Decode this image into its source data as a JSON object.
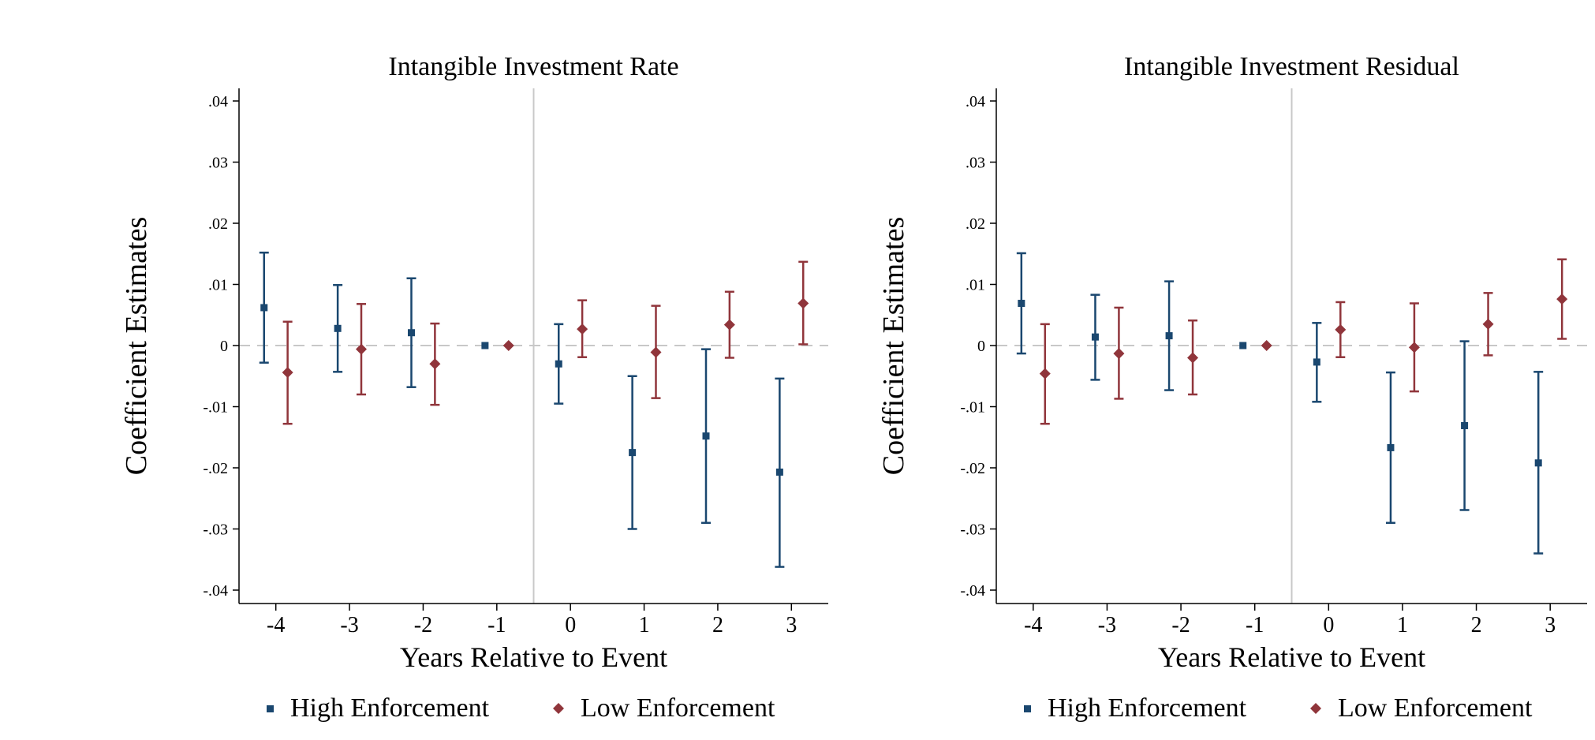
{
  "chart_data": [
    {
      "type": "scatter",
      "title": "Intangible Investment Rate",
      "xlabel": "Years Relative to Event",
      "ylabel": "Coefficient Estimates",
      "ylim": [
        -0.04,
        0.04
      ],
      "xlim": [
        -4.5,
        3.5
      ],
      "y_ticks": [
        ".04",
        ".03",
        ".02",
        ".01",
        "0",
        "-.01",
        "-.02",
        "-.03",
        "-.04"
      ],
      "x_ticks": [
        "-4",
        "-3",
        "-2",
        "-1",
        "0",
        "1",
        "2",
        "3"
      ],
      "event_line_x": -0.5,
      "zero_reference_line": true,
      "grid": false,
      "legend_position": "bottom",
      "series": [
        {
          "name": "High Enforcement",
          "color": "#1a476f",
          "marker": "square",
          "points": [
            {
              "x": -4,
              "y": 0.0062,
              "lo": -0.0028,
              "hi": 0.0152
            },
            {
              "x": -3,
              "y": 0.0028,
              "lo": -0.0043,
              "hi": 0.0099
            },
            {
              "x": -2,
              "y": 0.0021,
              "lo": -0.0068,
              "hi": 0.011
            },
            {
              "x": -1,
              "y": 0.0,
              "lo": null,
              "hi": null
            },
            {
              "x": 0,
              "y": -0.003,
              "lo": -0.0095,
              "hi": 0.0035
            },
            {
              "x": 1,
              "y": -0.0175,
              "lo": -0.03,
              "hi": -0.005
            },
            {
              "x": 2,
              "y": -0.0148,
              "lo": -0.029,
              "hi": -0.0006
            },
            {
              "x": 3,
              "y": -0.0207,
              "lo": -0.0362,
              "hi": -0.0054
            }
          ]
        },
        {
          "name": "Low Enforcement",
          "color": "#90353b",
          "marker": "diamond",
          "points": [
            {
              "x": -4,
              "y": -0.0044,
              "lo": -0.0128,
              "hi": 0.0039
            },
            {
              "x": -3,
              "y": -0.0006,
              "lo": -0.008,
              "hi": 0.0068
            },
            {
              "x": -2,
              "y": -0.003,
              "lo": -0.0097,
              "hi": 0.0036
            },
            {
              "x": -1,
              "y": 0.0,
              "lo": null,
              "hi": null
            },
            {
              "x": 0,
              "y": 0.0027,
              "lo": -0.0019,
              "hi": 0.0074
            },
            {
              "x": 1,
              "y": -0.0011,
              "lo": -0.0086,
              "hi": 0.0065
            },
            {
              "x": 2,
              "y": 0.0034,
              "lo": -0.002,
              "hi": 0.0088
            },
            {
              "x": 3,
              "y": 0.0069,
              "lo": 0.0002,
              "hi": 0.0137
            }
          ]
        }
      ]
    },
    {
      "type": "scatter",
      "title": "Intangible Investment Residual",
      "xlabel": "Years Relative to Event",
      "ylabel": "Coefficient Estimates",
      "ylim": [
        -0.04,
        0.04
      ],
      "xlim": [
        -4.5,
        3.5
      ],
      "y_ticks": [
        ".04",
        ".03",
        ".02",
        ".01",
        "0",
        "-.01",
        "-.02",
        "-.03",
        "-.04"
      ],
      "x_ticks": [
        "-4",
        "-3",
        "-2",
        "-1",
        "0",
        "1",
        "2",
        "3"
      ],
      "event_line_x": -0.5,
      "zero_reference_line": true,
      "grid": false,
      "legend_position": "bottom",
      "series": [
        {
          "name": "High Enforcement",
          "color": "#1a476f",
          "marker": "square",
          "points": [
            {
              "x": -4,
              "y": 0.0069,
              "lo": -0.0013,
              "hi": 0.0151
            },
            {
              "x": -3,
              "y": 0.0014,
              "lo": -0.0056,
              "hi": 0.0083
            },
            {
              "x": -2,
              "y": 0.0016,
              "lo": -0.0073,
              "hi": 0.0105
            },
            {
              "x": -1,
              "y": 0.0,
              "lo": null,
              "hi": null
            },
            {
              "x": 0,
              "y": -0.0027,
              "lo": -0.0092,
              "hi": 0.0037
            },
            {
              "x": 1,
              "y": -0.0167,
              "lo": -0.029,
              "hi": -0.0044
            },
            {
              "x": 2,
              "y": -0.0131,
              "lo": -0.0269,
              "hi": 0.0007
            },
            {
              "x": 3,
              "y": -0.0192,
              "lo": -0.034,
              "hi": -0.0043
            }
          ]
        },
        {
          "name": "Low Enforcement",
          "color": "#90353b",
          "marker": "diamond",
          "points": [
            {
              "x": -4,
              "y": -0.0046,
              "lo": -0.0128,
              "hi": 0.0035
            },
            {
              "x": -3,
              "y": -0.0013,
              "lo": -0.0087,
              "hi": 0.0062
            },
            {
              "x": -2,
              "y": -0.002,
              "lo": -0.008,
              "hi": 0.0041
            },
            {
              "x": -1,
              "y": 0.0,
              "lo": null,
              "hi": null
            },
            {
              "x": 0,
              "y": 0.0026,
              "lo": -0.0019,
              "hi": 0.0071
            },
            {
              "x": 1,
              "y": -0.0003,
              "lo": -0.0075,
              "hi": 0.0069
            },
            {
              "x": 2,
              "y": 0.0035,
              "lo": -0.0016,
              "hi": 0.0086
            },
            {
              "x": 3,
              "y": 0.0076,
              "lo": 0.0011,
              "hi": 0.0141
            }
          ]
        }
      ]
    }
  ]
}
